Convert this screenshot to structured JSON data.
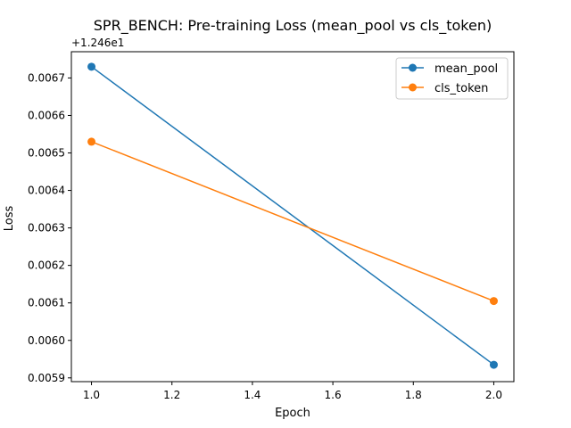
{
  "chart_data": {
    "type": "line",
    "title": "SPR_BENCH: Pre-training Loss (mean_pool vs cls_token)",
    "xlabel": "Epoch",
    "ylabel": "Loss",
    "offset_text": "+1.246e1",
    "xlim": [
      0.95,
      2.05
    ],
    "ylim": [
      0.00589,
      0.00677
    ],
    "x_ticks": [
      1.0,
      1.2,
      1.4,
      1.6,
      1.8,
      2.0
    ],
    "x_tick_labels": [
      "1.0",
      "1.2",
      "1.4",
      "1.6",
      "1.8",
      "2.0"
    ],
    "y_ticks": [
      0.0059,
      0.006,
      0.0061,
      0.0062,
      0.0063,
      0.0064,
      0.0065,
      0.0066,
      0.0067
    ],
    "y_tick_labels": [
      "0.0059",
      "0.0060",
      "0.0061",
      "0.0062",
      "0.0063",
      "0.0064",
      "0.0065",
      "0.0066",
      "0.0067"
    ],
    "grid": false,
    "legend_position": "top-right",
    "series": [
      {
        "name": "mean_pool",
        "color": "#1f77b4",
        "x": [
          1.0,
          2.0
        ],
        "y": [
          0.00673,
          0.005935
        ]
      },
      {
        "name": "cls_token",
        "color": "#ff7f0e",
        "x": [
          1.0,
          2.0
        ],
        "y": [
          0.00653,
          0.006105
        ]
      }
    ]
  }
}
